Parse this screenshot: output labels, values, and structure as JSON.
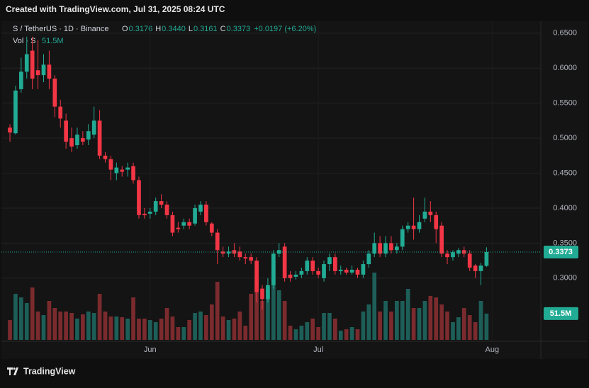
{
  "watermark": "Created with TradingView.com, Jul 31, 2025 08:24 UTC",
  "brand": "TradingView",
  "chart_data": {
    "type": "candlestick",
    "symbol": "S / TetherUS · 1D · Binance",
    "legend": {
      "open_key": "O",
      "high_key": "H",
      "high": {
        "value": 0.344,
        "label": "0.3440"
      },
      "low_key": "L",
      "close_key": "C",
      "change": "+0.0197 (+6.20%)"
    },
    "volume_name": "Vol · S",
    "volume_last": {
      "value": 51500000,
      "label": "51.5M"
    },
    "open": [
      0.515,
      0.507,
      0.57,
      0.595,
      0.625,
      0.597,
      0.59,
      0.605,
      0.585,
      0.545,
      0.525,
      0.5,
      0.49,
      0.5,
      0.498,
      0.505,
      0.525,
      0.475,
      0.47,
      0.45,
      0.455,
      0.455,
      0.46,
      0.44,
      0.392,
      0.392,
      0.395,
      0.41,
      0.405,
      0.39,
      0.372,
      0.375,
      0.38,
      0.378,
      0.395,
      0.405,
      0.378,
      0.365,
      0.338,
      0.335,
      0.34,
      0.338,
      0.33,
      0.33,
      0.325,
      0.285,
      0.27,
      0.29,
      0.335,
      0.345,
      0.305,
      0.302,
      0.305,
      0.31,
      0.325,
      0.31,
      0.3,
      0.32,
      0.33,
      0.31,
      0.312,
      0.308,
      0.312,
      0.305,
      0.32,
      0.335,
      0.35,
      0.335,
      0.35,
      0.34,
      0.345,
      0.37,
      0.375,
      0.37,
      0.385,
      0.395,
      0.39,
      0.375,
      0.335,
      0.33,
      0.335,
      0.34,
      0.335,
      0.318,
      0.31,
      0.3176
    ],
    "high": [
      0.52,
      0.575,
      0.615,
      0.645,
      0.645,
      0.64,
      0.62,
      0.625,
      0.59,
      0.555,
      0.535,
      0.515,
      0.515,
      0.51,
      0.52,
      0.545,
      0.54,
      0.48,
      0.475,
      0.465,
      0.46,
      0.465,
      0.465,
      0.445,
      0.4,
      0.4,
      0.415,
      0.42,
      0.41,
      0.395,
      0.38,
      0.385,
      0.385,
      0.405,
      0.41,
      0.41,
      0.38,
      0.37,
      0.345,
      0.345,
      0.35,
      0.345,
      0.335,
      0.335,
      0.33,
      0.29,
      0.3,
      0.34,
      0.35,
      0.35,
      0.31,
      0.31,
      0.315,
      0.33,
      0.33,
      0.315,
      0.325,
      0.335,
      0.335,
      0.318,
      0.315,
      0.318,
      0.315,
      0.325,
      0.34,
      0.365,
      0.36,
      0.36,
      0.36,
      0.35,
      0.375,
      0.38,
      0.415,
      0.39,
      0.415,
      0.41,
      0.395,
      0.38,
      0.34,
      0.34,
      0.343,
      0.345,
      0.34,
      0.32,
      0.322,
      0.344
    ],
    "low": [
      0.495,
      0.505,
      0.565,
      0.585,
      0.57,
      0.57,
      0.58,
      0.57,
      0.53,
      0.515,
      0.485,
      0.48,
      0.485,
      0.49,
      0.49,
      0.5,
      0.47,
      0.465,
      0.44,
      0.44,
      0.445,
      0.445,
      0.435,
      0.385,
      0.385,
      0.385,
      0.39,
      0.4,
      0.385,
      0.36,
      0.365,
      0.37,
      0.37,
      0.375,
      0.39,
      0.375,
      0.36,
      0.32,
      0.33,
      0.33,
      0.33,
      0.325,
      0.32,
      0.32,
      0.265,
      0.255,
      0.265,
      0.285,
      0.33,
      0.295,
      0.295,
      0.298,
      0.3,
      0.305,
      0.305,
      0.3,
      0.295,
      0.31,
      0.305,
      0.305,
      0.305,
      0.305,
      0.3,
      0.3,
      0.315,
      0.33,
      0.33,
      0.33,
      0.335,
      0.335,
      0.34,
      0.365,
      0.355,
      0.365,
      0.38,
      0.38,
      0.35,
      0.33,
      0.32,
      0.325,
      0.33,
      0.33,
      0.31,
      0.3,
      0.29,
      0.3161
    ],
    "close": [
      0.508,
      0.568,
      0.595,
      0.62,
      0.585,
      0.59,
      0.605,
      0.585,
      0.545,
      0.528,
      0.495,
      0.488,
      0.505,
      0.495,
      0.51,
      0.525,
      0.475,
      0.47,
      0.455,
      0.458,
      0.452,
      0.458,
      0.44,
      0.39,
      0.39,
      0.395,
      0.41,
      0.405,
      0.39,
      0.365,
      0.37,
      0.38,
      0.375,
      0.4,
      0.405,
      0.38,
      0.365,
      0.34,
      0.335,
      0.338,
      0.335,
      0.33,
      0.328,
      0.325,
      0.28,
      0.27,
      0.29,
      0.335,
      0.34,
      0.3,
      0.3,
      0.305,
      0.31,
      0.325,
      0.31,
      0.305,
      0.32,
      0.33,
      0.31,
      0.312,
      0.308,
      0.312,
      0.305,
      0.32,
      0.335,
      0.35,
      0.335,
      0.35,
      0.34,
      0.345,
      0.37,
      0.375,
      0.37,
      0.38,
      0.395,
      0.39,
      0.37,
      0.335,
      0.33,
      0.337,
      0.34,
      0.335,
      0.315,
      0.31,
      0.318,
      0.3373
    ],
    "volume": [
      38900000,
      90300000,
      83300000,
      72200000,
      102800000,
      55600000,
      48600000,
      76400000,
      62500000,
      55600000,
      55600000,
      52800000,
      41700000,
      50000000,
      55600000,
      52800000,
      90300000,
      55600000,
      45800000,
      45800000,
      44400000,
      41700000,
      83300000,
      41700000,
      41700000,
      38900000,
      34700000,
      41700000,
      62500000,
      45800000,
      25000000,
      25000000,
      38900000,
      52800000,
      55600000,
      48600000,
      69400000,
      113900000,
      45800000,
      38900000,
      41700000,
      55600000,
      27800000,
      90300000,
      122200000,
      76400000,
      97200000,
      155600000,
      97200000,
      76400000,
      27800000,
      20800000,
      27800000,
      34700000,
      41700000,
      25000000,
      52800000,
      52800000,
      41700000,
      18100000,
      20800000,
      25000000,
      20800000,
      55600000,
      69400000,
      131900000,
      55600000,
      76400000,
      55600000,
      76400000,
      76400000,
      100000000,
      62500000,
      62500000,
      76400000,
      86100000,
      83300000,
      69400000,
      55600000,
      34700000,
      44400000,
      62500000,
      48600000,
      34700000,
      76400000,
      51500000
    ],
    "up_color": "#22ab94",
    "down_color": "#f23645",
    "volume_up_color": "#1d5f58",
    "volume_down_color": "#7b2b2e",
    "xlim": [
      -1.52,
      94.68
    ],
    "xticks": [
      {
        "value": 25,
        "label": "Jun"
      },
      {
        "value": 55,
        "label": "Jul"
      },
      {
        "value": 86,
        "label": "Aug"
      }
    ],
    "ylim": [
      0.2118,
      0.665
    ],
    "yticks": [
      {
        "value": 0.3,
        "label": "0.3000"
      },
      {
        "value": 0.35,
        "label": "0.3500"
      },
      {
        "value": 0.4,
        "label": "0.4000"
      },
      {
        "value": 0.45,
        "label": "0.4500"
      },
      {
        "value": 0.5,
        "label": "0.5000"
      },
      {
        "value": 0.55,
        "label": "0.5500"
      },
      {
        "value": 0.6,
        "label": "0.6000"
      },
      {
        "value": 0.65,
        "label": "0.6500"
      }
    ],
    "volume_ylim": [
      0,
      200000000
    ],
    "grid": true
  }
}
